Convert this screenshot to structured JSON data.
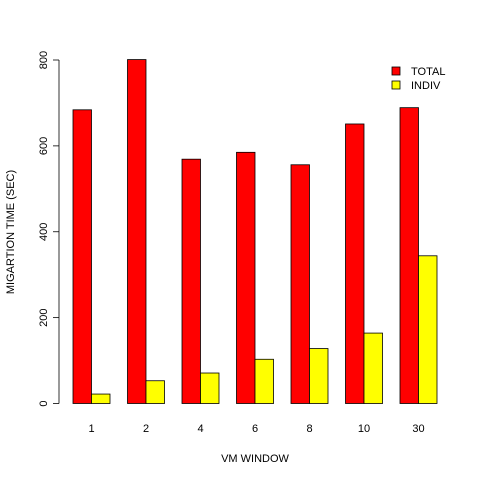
{
  "chart_data": {
    "type": "bar",
    "xlabel": "VM WINDOW",
    "ylabel": "MIGARTION TIME (SEC)",
    "categories": [
      "1",
      "2",
      "4",
      "6",
      "8",
      "10",
      "30"
    ],
    "series": [
      {
        "name": "TOTAL",
        "color": "#ff0000",
        "values": [
          684,
          801,
          569,
          585,
          556,
          651,
          689
        ]
      },
      {
        "name": "INDIV",
        "color": "#ffff00",
        "values": [
          22,
          53,
          71,
          103,
          128,
          164,
          344
        ]
      }
    ],
    "ylim": [
      0,
      800
    ],
    "yticks": [
      "0",
      "200",
      "400",
      "600",
      "800"
    ],
    "grid": false,
    "legend_position": "top-right"
  }
}
